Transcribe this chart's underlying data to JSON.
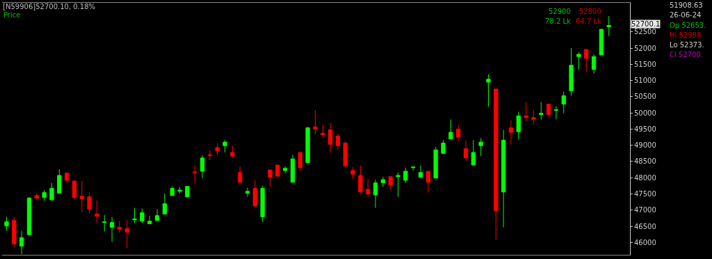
{
  "chart_data": {
    "type": "candlestick",
    "title": "[N59906]52700.10, 0.18%",
    "categories": [
      null,
      null,
      null,
      null,
      null,
      null,
      null,
      null,
      null,
      null,
      null,
      null,
      null,
      null,
      null,
      null,
      null,
      null,
      null,
      null,
      null,
      null,
      null,
      null,
      null,
      null,
      null,
      null,
      null,
      null,
      null,
      null,
      null,
      null,
      null,
      null,
      null,
      null,
      null,
      null,
      null,
      null,
      null,
      null,
      null,
      null,
      null,
      null,
      null,
      null,
      null,
      null,
      null,
      null,
      null,
      null,
      null,
      null,
      null,
      null,
      null,
      null,
      null,
      null,
      null,
      null,
      null,
      null,
      null,
      null,
      null,
      null,
      null,
      null,
      null,
      null,
      null,
      null,
      null,
      null,
      null
    ],
    "ohlc": [
      [
        46510,
        46790,
        46360,
        46640
      ],
      [
        46680,
        46790,
        45850,
        45960
      ],
      [
        45890,
        46360,
        45640,
        46150
      ],
      [
        46240,
        47410,
        46240,
        47370
      ],
      [
        47450,
        47520,
        47320,
        47370
      ],
      [
        47390,
        47620,
        47280,
        47540
      ],
      [
        47320,
        47840,
        47280,
        47670
      ],
      [
        47520,
        48260,
        47520,
        48070
      ],
      [
        48140,
        48160,
        47840,
        47920
      ],
      [
        47900,
        47900,
        47320,
        47390
      ],
      [
        47430,
        47900,
        46940,
        47350
      ],
      [
        47410,
        47540,
        46900,
        47030
      ],
      [
        46880,
        47300,
        46600,
        46810
      ],
      [
        46620,
        46850,
        46340,
        46640
      ],
      [
        46470,
        46790,
        46020,
        46620
      ],
      [
        46470,
        46660,
        46300,
        46410
      ],
      [
        46430,
        46700,
        45830,
        46320
      ],
      [
        46700,
        47070,
        46600,
        46730
      ],
      [
        46660,
        47050,
        46600,
        46920
      ],
      [
        46580,
        46830,
        46580,
        46660
      ],
      [
        46680,
        47030,
        46680,
        46830
      ],
      [
        46880,
        47520,
        46880,
        47200
      ],
      [
        47450,
        47730,
        47450,
        47670
      ],
      [
        47580,
        47710,
        47520,
        47620
      ],
      [
        47410,
        47750,
        47390,
        47730
      ],
      [
        48180,
        48370,
        47820,
        48160
      ],
      [
        48200,
        48690,
        47990,
        48610
      ],
      [
        48710,
        48840,
        48540,
        48690
      ],
      [
        48930,
        49070,
        48690,
        48820
      ],
      [
        48990,
        49160,
        48780,
        49100
      ],
      [
        48780,
        48990,
        48610,
        48670
      ],
      [
        48160,
        48350,
        47840,
        47860
      ],
      [
        47520,
        47690,
        47410,
        47580
      ],
      [
        47670,
        47920,
        47050,
        47130
      ],
      [
        46790,
        47750,
        46640,
        47670
      ],
      [
        48240,
        48240,
        47730,
        48010
      ],
      [
        48390,
        48390,
        48010,
        48050
      ],
      [
        48220,
        48350,
        48140,
        48290
      ],
      [
        47860,
        48710,
        47860,
        48580
      ],
      [
        48780,
        48780,
        48200,
        48310
      ],
      [
        48460,
        49570,
        48460,
        49540
      ],
      [
        49570,
        50080,
        49350,
        49500
      ],
      [
        49370,
        49630,
        49250,
        49330
      ],
      [
        49480,
        49690,
        48780,
        49030
      ],
      [
        49290,
        49350,
        48860,
        48990
      ],
      [
        49070,
        49120,
        48310,
        48370
      ],
      [
        48220,
        48330,
        47960,
        48110
      ],
      [
        48070,
        48370,
        47540,
        47560
      ],
      [
        47640,
        47960,
        47390,
        47500
      ],
      [
        47470,
        47940,
        47070,
        47840
      ],
      [
        47840,
        48030,
        47710,
        47940
      ],
      [
        48030,
        48030,
        47620,
        47770
      ],
      [
        48030,
        48160,
        47410,
        48070
      ],
      [
        47920,
        48310,
        47840,
        48200
      ],
      [
        48310,
        48350,
        48220,
        48330
      ],
      [
        48010,
        48370,
        48010,
        48160
      ],
      [
        48200,
        48200,
        47540,
        47860
      ],
      [
        47990,
        48950,
        47990,
        48860
      ],
      [
        48750,
        49160,
        48750,
        49070
      ],
      [
        49200,
        49800,
        49180,
        49400
      ],
      [
        49500,
        49630,
        49140,
        49250
      ],
      [
        48900,
        49140,
        48520,
        48610
      ],
      [
        48390,
        49160,
        48390,
        48780
      ],
      [
        48990,
        49220,
        48670,
        49100
      ],
      [
        50950,
        51190,
        50190,
        51040
      ],
      [
        50740,
        50740,
        46090,
        46980
      ],
      [
        47560,
        49480,
        46470,
        49160
      ],
      [
        49540,
        49780,
        49010,
        49400
      ],
      [
        49420,
        50040,
        49180,
        49910
      ],
      [
        49910,
        50330,
        49740,
        49860
      ],
      [
        49860,
        50080,
        49650,
        49800
      ],
      [
        49950,
        50330,
        49800,
        49990
      ],
      [
        50270,
        50270,
        49890,
        49950
      ],
      [
        50080,
        50210,
        49800,
        50100
      ],
      [
        50270,
        50650,
        49990,
        50530
      ],
      [
        50680,
        52000,
        50530,
        51470
      ],
      [
        51740,
        51870,
        51340,
        51810
      ],
      [
        51960,
        51960,
        51270,
        51680
      ],
      [
        51340,
        51810,
        51210,
        51740
      ],
      [
        51790,
        52600,
        51790,
        52580
      ],
      [
        52653,
        52988,
        52373,
        52700
      ]
    ],
    "colors": [
      "#00ff00",
      "#ff0000",
      "#00ff00",
      "#00ff00",
      "#ff0000",
      "#00ff00",
      "#00ff00",
      "#00ff00",
      "#ff0000",
      "#ff0000",
      "#ff0000",
      "#ff0000",
      "#ff0000",
      "#00ff00",
      "#00ff00",
      "#ff0000",
      "#ff0000",
      "#00ff00",
      "#00ff00",
      "#00ff00",
      "#00ff00",
      "#00ff00",
      "#00ff00",
      "#00ff00",
      "#00ff00",
      "#ff0000",
      "#00ff00",
      "#ff0000",
      "#ff0000",
      "#00ff00",
      "#ff0000",
      "#ff0000",
      "#00ff00",
      "#ff0000",
      "#00ff00",
      "#ff0000",
      "#ff0000",
      "#00ff00",
      "#00ff00",
      "#ff0000",
      "#00ff00",
      "#ff0000",
      "#ff0000",
      "#ff0000",
      "#ff0000",
      "#ff0000",
      "#ff0000",
      "#ff0000",
      "#ff0000",
      "#00ff00",
      "#00ff00",
      "#ff0000",
      "#00ff00",
      "#00ff00",
      "#00ff00",
      "#00ff00",
      "#ff0000",
      "#00ff00",
      "#00ff00",
      "#00ff00",
      "#ff0000",
      "#ff0000",
      "#00ff00",
      "#00ff00",
      "#00ff00",
      "#ff0000",
      "#00ff00",
      "#ff0000",
      "#00ff00",
      "#ff0000",
      "#ff0000",
      "#00ff00",
      "#ff0000",
      "#00ff00",
      "#00ff00",
      "#00ff00",
      "#00ff00",
      "#ff0000",
      "#00ff00",
      "#00ff00",
      "#00ff00"
    ],
    "ylim": [
      45620,
      53400
    ],
    "yticks": [
      46000,
      46500,
      47000,
      47500,
      48000,
      48500,
      49000,
      49500,
      50000,
      50500,
      51000,
      51500,
      52000,
      52500
    ],
    "grid": false,
    "annotations": [
      "Price",
      "52900",
      "78.2 Lk",
      "52800",
      "64.7 Lk",
      "51908.63",
      "26-06-24",
      "Op 52653.",
      "Hi 52988.",
      "Lo 52373.",
      "Cl 52700.",
      "52700.1"
    ]
  }
}
